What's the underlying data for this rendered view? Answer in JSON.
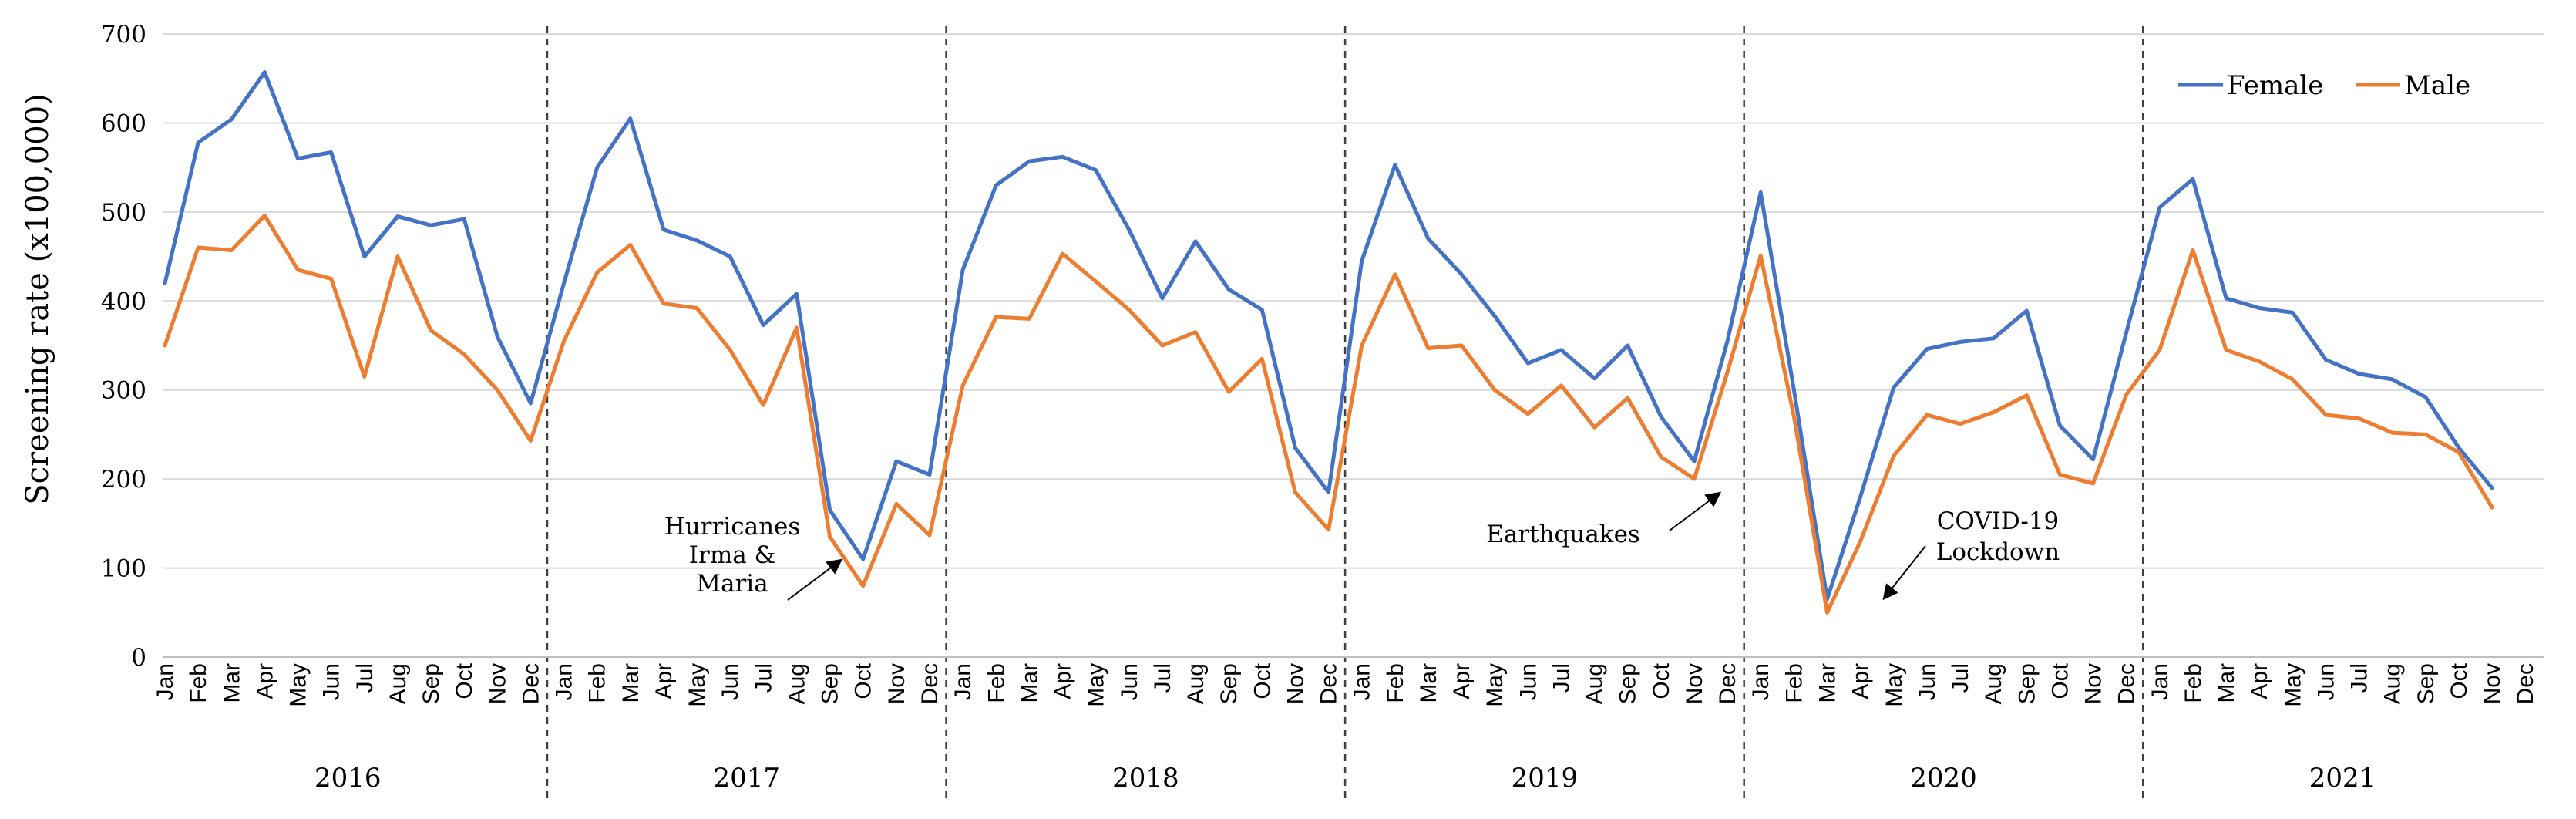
{
  "chart_data": {
    "type": "line",
    "title": "",
    "xlabel": "",
    "ylabel": "Screening  rate (x100,000)",
    "ylim": [
      0,
      700
    ],
    "yticks": [
      0,
      100,
      200,
      300,
      400,
      500,
      600,
      700
    ],
    "grid": true,
    "legend": {
      "placement": "top-right"
    },
    "months": [
      "Jan",
      "Feb",
      "Mar",
      "Apr",
      "May",
      "Jun",
      "Jul",
      "Aug",
      "Sep",
      "Oct",
      "Nov",
      "Dec"
    ],
    "years": [
      "2016",
      "2017",
      "2018",
      "2019",
      "2020",
      "2021"
    ],
    "series": [
      {
        "name": "Female",
        "color": "#4472C4",
        "values": [
          420,
          578,
          604,
          657,
          560,
          567,
          450,
          495,
          485,
          492,
          360,
          285,
          420,
          550,
          605,
          480,
          468,
          450,
          373,
          408,
          165,
          110,
          220,
          205,
          435,
          530,
          557,
          562,
          547,
          480,
          403,
          467,
          413,
          390,
          235,
          185,
          445,
          553,
          470,
          430,
          383,
          330,
          345,
          313,
          350,
          270,
          220,
          355,
          522,
          300,
          65,
          180,
          303,
          346,
          354,
          358,
          389,
          260,
          222,
          365,
          505,
          537,
          403,
          392,
          387,
          334,
          318,
          312,
          292,
          235,
          190
        ]
      },
      {
        "name": "Male",
        "color": "#ED7D31",
        "values": [
          350,
          460,
          457,
          496,
          435,
          425,
          315,
          450,
          367,
          340,
          300,
          243,
          355,
          432,
          463,
          397,
          392,
          345,
          283,
          370,
          135,
          80,
          172,
          137,
          305,
          382,
          380,
          453,
          422,
          390,
          350,
          365,
          298,
          335,
          185,
          143,
          350,
          430,
          347,
          350,
          300,
          273,
          305,
          258,
          291,
          225,
          200,
          320,
          451,
          270,
          50,
          130,
          226,
          272,
          262,
          275,
          294,
          205,
          195,
          295,
          345,
          457,
          345,
          332,
          312,
          272,
          268,
          252,
          250,
          230,
          168
        ]
      }
    ],
    "annotations": [
      {
        "lines": [
          "Hurricanes",
          "Irma &",
          "Maria"
        ],
        "points_to": "2017 Sep"
      },
      {
        "lines": [
          "Earthquakes"
        ],
        "points_to": "2019 Dec"
      },
      {
        "lines": [
          "COVID-19",
          "Lockdown"
        ],
        "points_to": "2020 Apr"
      }
    ]
  }
}
